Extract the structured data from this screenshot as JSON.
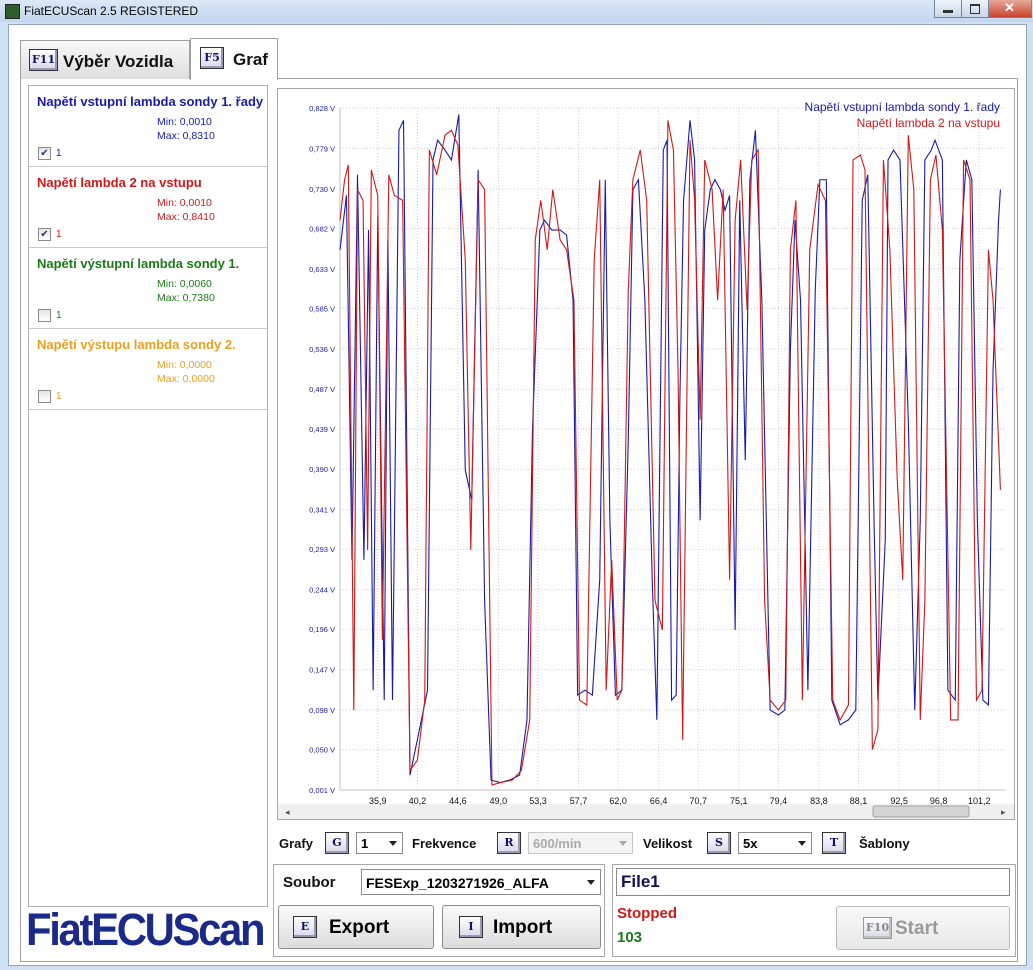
{
  "window": {
    "title": "FiatECUScan 2.5 REGISTERED"
  },
  "tabs": [
    {
      "key": "F11",
      "label": "Výběr Vozidla"
    },
    {
      "key": "F5",
      "label": "Graf"
    }
  ],
  "sensors": [
    {
      "name": "Napětí vstupní lambda sondy 1. řady",
      "min": "Min: 0,0010",
      "max": "Max: 0,8310",
      "checked": true,
      "graph": "1",
      "color": "#1a1aa8"
    },
    {
      "name": "Napětí lambda 2 na vstupu",
      "min": "Min: 0,0010",
      "max": "Max: 0,8410",
      "checked": true,
      "graph": "1",
      "color": "#d01818"
    },
    {
      "name": "Napětí výstupní lambda sondy 1.",
      "min": "Min: 0,0060",
      "max": "Max: 0,7380",
      "checked": false,
      "graph": "1",
      "color": "#1a7a1a"
    },
    {
      "name": "Napětí výstupu lambda sondy 2.",
      "min": "Min: 0,0000",
      "max": "Max: 0,0000",
      "checked": false,
      "graph": "1",
      "color": "#e8a020"
    }
  ],
  "chart_data": {
    "type": "line",
    "xlim": [
      31.8,
      104.0
    ],
    "ylim": [
      0.001,
      0.828
    ],
    "grid": true,
    "legend": "top-right",
    "xticks": [
      {
        "value": 35.9,
        "label": "35,9"
      },
      {
        "value": 40.2,
        "label": "40,2"
      },
      {
        "value": 44.6,
        "label": "44,6"
      },
      {
        "value": 49.0,
        "label": "49,0"
      },
      {
        "value": 53.3,
        "label": "53,3"
      },
      {
        "value": 57.7,
        "label": "57,7"
      },
      {
        "value": 62.0,
        "label": "62,0"
      },
      {
        "value": 66.4,
        "label": "66,4"
      },
      {
        "value": 70.7,
        "label": "70,7"
      },
      {
        "value": 75.1,
        "label": "75,1"
      },
      {
        "value": 79.4,
        "label": "79,4"
      },
      {
        "value": 83.8,
        "label": "83,8"
      },
      {
        "value": 88.1,
        "label": "88,1"
      },
      {
        "value": 92.5,
        "label": "92,5"
      },
      {
        "value": 96.8,
        "label": "96,8"
      },
      {
        "value": 101.2,
        "label": "101,2"
      }
    ],
    "yticks": [
      {
        "value": 0.001,
        "label": "0,001 V"
      },
      {
        "value": 0.05,
        "label": "0,050 V"
      },
      {
        "value": 0.098,
        "label": "0,098 V"
      },
      {
        "value": 0.147,
        "label": "0,147 V"
      },
      {
        "value": 0.196,
        "label": "0,196 V"
      },
      {
        "value": 0.244,
        "label": "0,244 V"
      },
      {
        "value": 0.293,
        "label": "0,293 V"
      },
      {
        "value": 0.341,
        "label": "0,341 V"
      },
      {
        "value": 0.39,
        "label": "0,390 V"
      },
      {
        "value": 0.439,
        "label": "0,439 V"
      },
      {
        "value": 0.487,
        "label": "0,487 V"
      },
      {
        "value": 0.536,
        "label": "0,536 V"
      },
      {
        "value": 0.585,
        "label": "0,585 V"
      },
      {
        "value": 0.633,
        "label": "0,633 V"
      },
      {
        "value": 0.682,
        "label": "0,682 V"
      },
      {
        "value": 0.73,
        "label": "0,730 V"
      },
      {
        "value": 0.779,
        "label": "0,779 V"
      },
      {
        "value": 0.828,
        "label": "0,828 V"
      }
    ],
    "series": [
      {
        "name": "Napětí vstupní lambda sondy 1. řady",
        "color": "#1a1aa8",
        "x": [
          31.8,
          32.5,
          33.1,
          33.7,
          34.4,
          34.9,
          35.4,
          35.9,
          36.6,
          37.0,
          37.5,
          38.2,
          38.7,
          39.4,
          40.2,
          41.3,
          41.9,
          42.4,
          43.2,
          43.9,
          44.7,
          45.4,
          46.1,
          46.8,
          47.5,
          48.2,
          49.2,
          50.2,
          51.3,
          52.1,
          52.7,
          53.5,
          54.0,
          54.8,
          55.7,
          56.4,
          57.1,
          57.6,
          58.4,
          59.2,
          60.0,
          60.6,
          61.1,
          61.7,
          62.4,
          63.1,
          63.6,
          64.2,
          64.9,
          65.7,
          66.2,
          66.9,
          67.3,
          67.8,
          68.3,
          68.7,
          69.1,
          69.8,
          70.3,
          70.9,
          71.4,
          72.0,
          72.5,
          73.1,
          73.6,
          74.1,
          74.7,
          75.2,
          75.8,
          76.3,
          76.9,
          77.6,
          78.5,
          79.4,
          80.1,
          80.7,
          81.2,
          81.8,
          82.6,
          83.4,
          83.9,
          84.6,
          85.2,
          86.1,
          87.0,
          87.8,
          88.5,
          89.1,
          89.8,
          90.2,
          91.0,
          91.3,
          91.9,
          92.6,
          93.5,
          94.2,
          94.8,
          95.3,
          96.0,
          96.4,
          97.2,
          97.8,
          98.6,
          99.1,
          99.8,
          100.4,
          101.0,
          101.6,
          102.2,
          102.7,
          103.3,
          103.5
        ],
        "values": [
          0.656,
          0.722,
          0.28,
          0.747,
          0.28,
          0.68,
          0.122,
          0.698,
          0.11,
          0.668,
          0.11,
          0.801,
          0.813,
          0.019,
          0.062,
          0.122,
          0.765,
          0.789,
          0.777,
          0.765,
          0.82,
          0.389,
          0.353,
          0.753,
          0.231,
          0.013,
          0.01,
          0.013,
          0.019,
          0.086,
          0.438,
          0.68,
          0.692,
          0.68,
          0.68,
          0.674,
          0.595,
          0.116,
          0.122,
          0.116,
          0.256,
          0.741,
          0.328,
          0.116,
          0.122,
          0.425,
          0.729,
          0.741,
          0.595,
          0.256,
          0.086,
          0.777,
          0.789,
          0.11,
          0.116,
          0.474,
          0.716,
          0.813,
          0.765,
          0.328,
          0.68,
          0.729,
          0.741,
          0.729,
          0.704,
          0.722,
          0.195,
          0.716,
          0.401,
          0.741,
          0.801,
          0.595,
          0.098,
          0.092,
          0.098,
          0.535,
          0.692,
          0.595,
          0.122,
          0.607,
          0.741,
          0.741,
          0.11,
          0.08,
          0.086,
          0.098,
          0.716,
          0.747,
          0.316,
          0.11,
          0.304,
          0.765,
          0.777,
          0.765,
          0.45,
          0.098,
          0.328,
          0.765,
          0.777,
          0.789,
          0.765,
          0.122,
          0.11,
          0.644,
          0.765,
          0.741,
          0.328,
          0.11,
          0.104,
          0.51,
          0.692,
          0.729
        ]
      },
      {
        "name": "Napětí lambda 2 na vstupu",
        "color": "#d01818",
        "x": [
          31.8,
          32.3,
          32.7,
          33.3,
          33.7,
          34.3,
          34.8,
          35.2,
          35.9,
          36.4,
          37.1,
          37.7,
          38.6,
          39.4,
          40.2,
          41.0,
          41.5,
          42.3,
          43.2,
          43.9,
          44.6,
          45.4,
          46.0,
          46.8,
          47.5,
          48.3,
          49.2,
          50.5,
          51.5,
          52.4,
          53.0,
          53.6,
          54.3,
          54.9,
          55.7,
          56.4,
          57.2,
          57.8,
          58.6,
          59.4,
          60.0,
          60.7,
          61.3,
          61.9,
          62.4,
          63.1,
          63.6,
          64.4,
          65.1,
          66.0,
          66.8,
          67.4,
          68.0,
          68.5,
          69.0,
          69.8,
          70.3,
          70.9,
          71.4,
          72.2,
          72.8,
          73.4,
          74.1,
          74.7,
          75.3,
          76.0,
          76.5,
          77.2,
          77.9,
          78.5,
          79.4,
          80.2,
          80.7,
          81.3,
          82.0,
          82.8,
          83.7,
          84.5,
          85.3,
          86.1,
          87.0,
          87.5,
          88.3,
          88.8,
          89.6,
          90.2,
          90.8,
          91.5,
          92.3,
          92.9,
          93.5,
          94.1,
          94.8,
          95.3,
          95.9,
          96.5,
          97.2,
          98.1,
          98.9,
          99.5,
          100.2,
          100.9,
          101.5,
          102.2,
          102.7,
          103.5
        ],
        "values": [
          0.692,
          0.741,
          0.759,
          0.098,
          0.729,
          0.716,
          0.292,
          0.753,
          0.722,
          0.183,
          0.747,
          0.722,
          0.716,
          0.025,
          0.037,
          0.11,
          0.777,
          0.747,
          0.795,
          0.801,
          0.783,
          0.644,
          0.292,
          0.741,
          0.729,
          0.007,
          0.01,
          0.013,
          0.025,
          0.086,
          0.668,
          0.716,
          0.656,
          0.729,
          0.668,
          0.656,
          0.595,
          0.11,
          0.104,
          0.644,
          0.741,
          0.122,
          0.28,
          0.11,
          0.122,
          0.607,
          0.741,
          0.777,
          0.716,
          0.231,
          0.195,
          0.813,
          0.777,
          0.51,
          0.062,
          0.789,
          0.716,
          0.45,
          0.765,
          0.729,
          0.595,
          0.729,
          0.256,
          0.692,
          0.765,
          0.583,
          0.765,
          0.777,
          0.231,
          0.11,
          0.098,
          0.11,
          0.656,
          0.716,
          0.11,
          0.656,
          0.735,
          0.716,
          0.11,
          0.086,
          0.104,
          0.765,
          0.771,
          0.753,
          0.05,
          0.074,
          0.765,
          0.656,
          0.377,
          0.256,
          0.795,
          0.729,
          0.086,
          0.231,
          0.741,
          0.771,
          0.68,
          0.086,
          0.086,
          0.765,
          0.741,
          0.11,
          0.122,
          0.656,
          0.595,
          0.365
        ]
      }
    ]
  },
  "controls": {
    "graphs": {
      "label": "Grafy",
      "key": "G",
      "value": "1"
    },
    "frequency": {
      "label": "Frekvence",
      "key": "R",
      "value": "600/min"
    },
    "size": {
      "label": "Velikost",
      "key": "S",
      "value": "5x"
    },
    "templates": {
      "key": "T",
      "label": "Šablony"
    }
  },
  "file": {
    "label": "Soubor",
    "value": "FESExp_1203271926_ALFA",
    "export": {
      "key": "E",
      "label": "Export"
    },
    "import": {
      "key": "I",
      "label": "Import"
    }
  },
  "status": {
    "file": "File1",
    "state": "Stopped",
    "count": "103",
    "start": {
      "key": "F10",
      "label": "Start"
    }
  },
  "logo": "FiatECUScan"
}
